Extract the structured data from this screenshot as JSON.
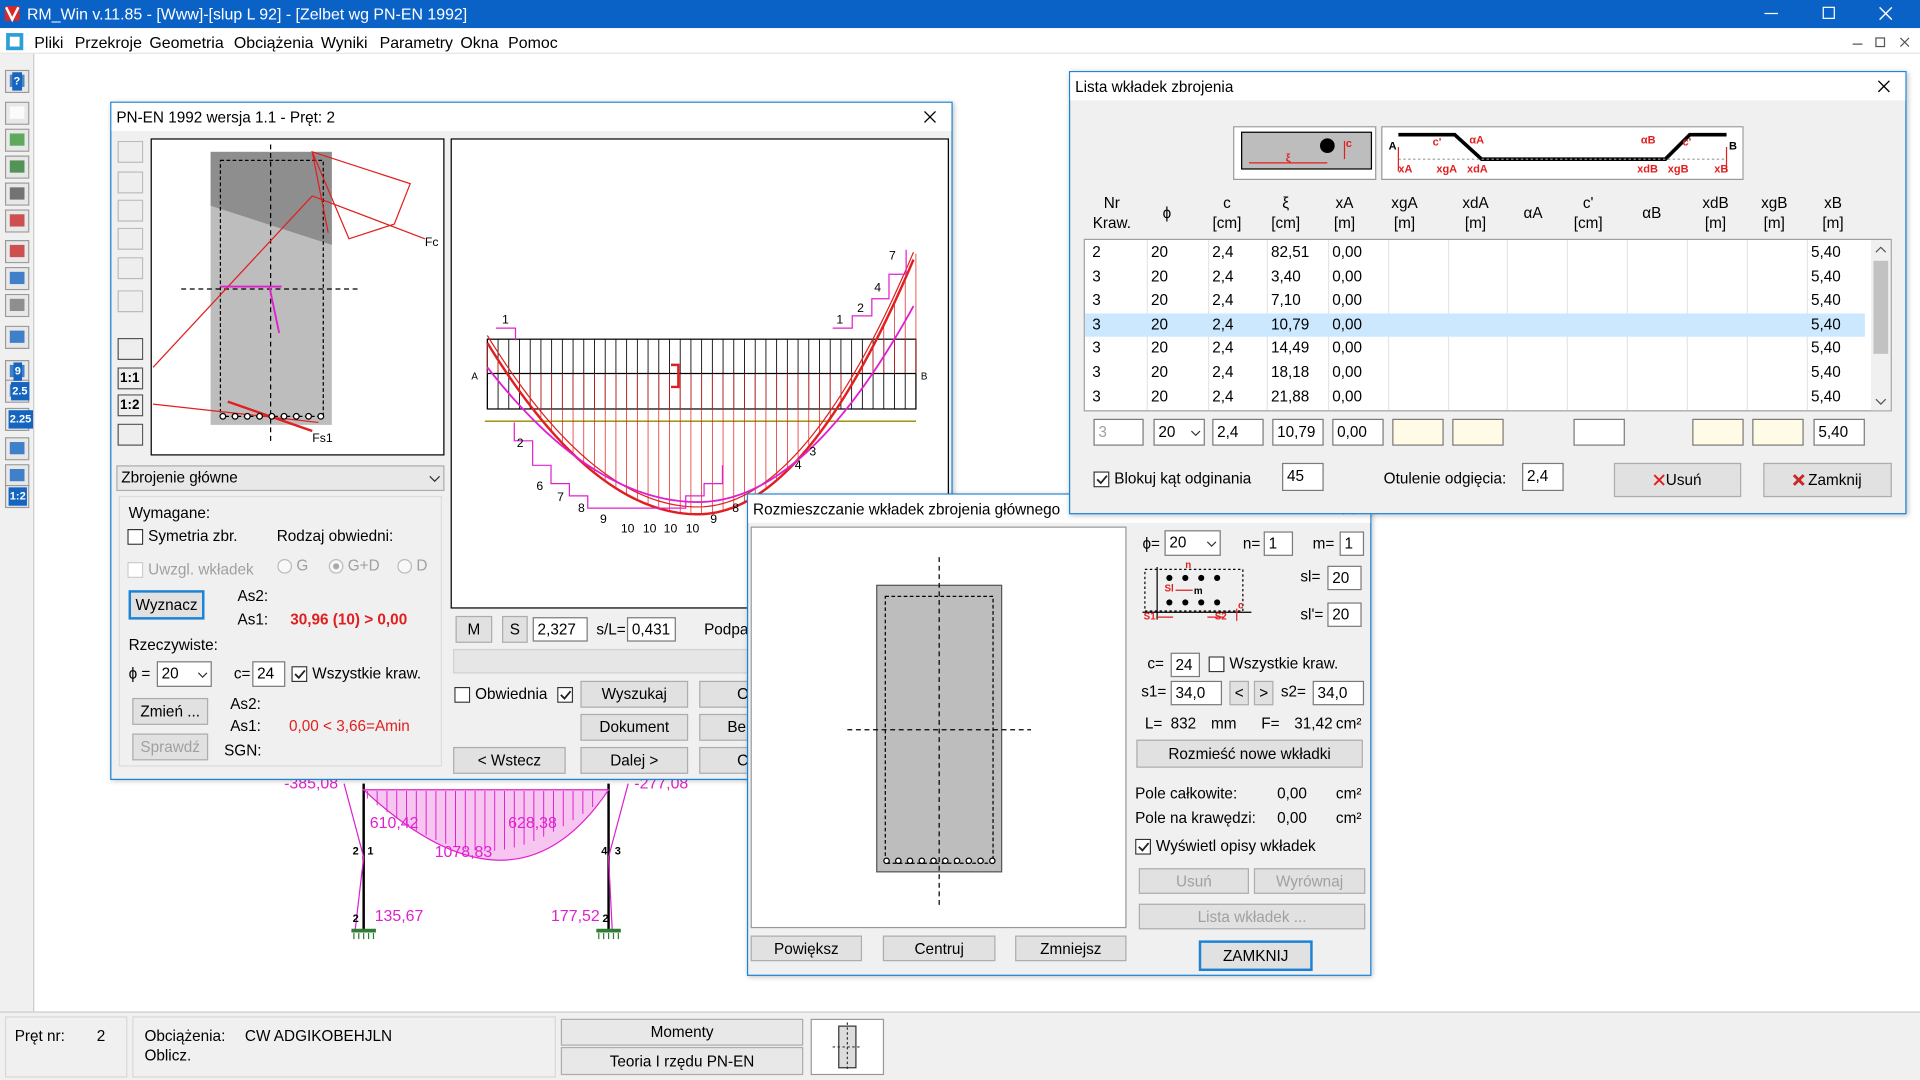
{
  "title_bar": {
    "title": "RM_Win v.11.85 - [Www]-[slup L 92] - [Zelbet wg PN-EN 1992]"
  },
  "menu": [
    "Pliki",
    "Przekroje",
    "Geometria",
    "Obciążenia",
    "Wyniki",
    "Parametry",
    "Okna",
    "Pomoc"
  ],
  "toolbar": {
    "labels": [
      "?",
      "9",
      "2.5",
      "2.25",
      "1:2"
    ]
  },
  "frame_diagram": {
    "values": [
      "-385,08",
      "610,42",
      "1078,83",
      "628,38",
      "-277,08",
      "135,67",
      "177,52"
    ],
    "node_labels": [
      "2",
      "1",
      "4",
      "3",
      "2",
      "2"
    ]
  },
  "design_window": {
    "title": "PN-EN 1992 wersja 1.1 - Pręt: 2",
    "icon_labels": [
      "1:1",
      "1:2"
    ],
    "section_labels": [
      "Fc",
      "Fs1"
    ],
    "mode_select": "Zbrojenie główne",
    "required": {
      "heading": "Wymagane:",
      "symmetry": "Symetria zbr.",
      "envelope_heading": "Rodzaj obwiedni:",
      "include_inserts": "Uwzgl. wkładek",
      "envelope_options": [
        "G",
        "G+D",
        "D"
      ],
      "compute_button": "Wyznacz",
      "as2_label": "As2:",
      "as1_label": "As1:",
      "as1_value": "30,96 (10) > 0,00"
    },
    "actual": {
      "heading": "Rzeczywiste:",
      "phi_label": "ϕ =",
      "phi_value": "20",
      "c_label": "c=",
      "c_value": "24",
      "all_edges": "Wszystkie kraw.",
      "change_button": "Zmień ...",
      "as2_label": "As2:",
      "as1_label": "As1:",
      "as1_value": "0,00 < 3,66=Amin",
      "check_button": "Sprawdź",
      "sgn_label": "SGN:"
    },
    "diagram_labels": {
      "ends": [
        "A",
        "B"
      ],
      "top": [
        "1",
        "1",
        "2",
        "4",
        "7"
      ],
      "bottom": [
        "2",
        "6",
        "7",
        "8",
        "9",
        "10",
        "10",
        "10",
        "10",
        "9",
        "8",
        "4",
        "3"
      ]
    },
    "controls": {
      "m_button": "M",
      "s_button": "S",
      "position": "2,327",
      "ratio_label": "s/L=",
      "ratio_value": "0,431",
      "truncated_label": "Podpa",
      "envelope": "Obwiednia",
      "search_button": "Wyszukaj",
      "document_button": "Dokument",
      "back_button": "< Wstecz",
      "next_button": "Dalej >",
      "cut_buttons": [
        "O",
        "Be",
        "C"
      ]
    }
  },
  "bar_list_window": {
    "title": "Lista wkładek zbrojenia",
    "sketch_labels": [
      "c",
      "ξ",
      "A",
      "B",
      "c'",
      "αA",
      "αB",
      "c'",
      "xA",
      "xgA",
      "xdA",
      "xdB",
      "xgB",
      "xB"
    ],
    "columns": [
      {
        "top": "Nr",
        "bottom": "Kraw."
      },
      {
        "top": "ϕ"
      },
      {
        "top": "c",
        "bottom": "[cm]"
      },
      {
        "top": "ξ",
        "bottom": "[cm]"
      },
      {
        "top": "xA",
        "bottom": "[m]"
      },
      {
        "top": "xgA",
        "bottom": "[m]"
      },
      {
        "top": "xdA",
        "bottom": "[m]"
      },
      {
        "top": "αA"
      },
      {
        "top": "c'",
        "bottom": "[cm]"
      },
      {
        "top": "αB"
      },
      {
        "top": "xdB",
        "bottom": "[m]"
      },
      {
        "top": "xgB",
        "bottom": "[m]"
      },
      {
        "top": "xB",
        "bottom": "[m]"
      }
    ],
    "rows": [
      {
        "nr": "2",
        "phi": "20",
        "c": "2,4",
        "xi": "82,51",
        "xA": "0,00",
        "xB": "5,40"
      },
      {
        "nr": "3",
        "phi": "20",
        "c": "2,4",
        "xi": "3,40",
        "xA": "0,00",
        "xB": "5,40"
      },
      {
        "nr": "3",
        "phi": "20",
        "c": "2,4",
        "xi": "7,10",
        "xA": "0,00",
        "xB": "5,40"
      },
      {
        "nr": "3",
        "phi": "20",
        "c": "2,4",
        "xi": "10,79",
        "xA": "0,00",
        "xB": "5,40"
      },
      {
        "nr": "3",
        "phi": "20",
        "c": "2,4",
        "xi": "14,49",
        "xA": "0,00",
        "xB": "5,40"
      },
      {
        "nr": "3",
        "phi": "20",
        "c": "2,4",
        "xi": "18,18",
        "xA": "0,00",
        "xB": "5,40"
      },
      {
        "nr": "3",
        "phi": "20",
        "c": "2,4",
        "xi": "21,88",
        "xA": "0,00",
        "xB": "5,40"
      }
    ],
    "selected_row": 3,
    "edit_row": {
      "nr": "3",
      "phi": "20",
      "c": "2,4",
      "xi": "10,79",
      "xA": "0,00",
      "xB": "5,40"
    },
    "lock_angle": "Blokuj kąt odginania",
    "angle_value": "45",
    "cover_label": "Otulenie odgięcia:",
    "cover_value": "2,4",
    "delete_button": "Usuń",
    "close_button": "Zamknij"
  },
  "placement_window": {
    "title": "Rozmieszczanie wkładek zbrojenia głównego",
    "phi_label": "ϕ=",
    "phi_value": "20",
    "n_label": "n=",
    "n_value": "1",
    "m_label": "m=",
    "m_value": "1",
    "sl_label": "sl=",
    "sl_value": "20",
    "sl2_label": "sl'=",
    "sl2_value": "20",
    "sketch_labels": [
      "n",
      "m",
      "Sl",
      "c",
      "S1",
      "S2"
    ],
    "c_label": "c=",
    "c_value": "24",
    "all_edges": "Wszystkie kraw.",
    "s1_label": "s1=",
    "s1_value": "34,0",
    "prev_button": "<",
    "next_button": ">",
    "s2_label": "s2=",
    "s2_value": "34,0",
    "length_label": "L=",
    "length_value": "832",
    "length_unit": "mm",
    "area_label": "F=",
    "area_value": "31,42",
    "area_unit": "cm²",
    "place_button": "Rozmieść nowe wkładki",
    "total_label": "Pole całkowite:",
    "total_value": "0,00",
    "total_unit": "cm²",
    "edge_label": "Pole na krawędzi:",
    "edge_value": "0,00",
    "edge_unit": "cm²",
    "show_labels": "Wyświetl opisy wkładek",
    "delete_button": "Usuń",
    "align_button": "Wyrównaj",
    "list_button": "Lista wkładek ...",
    "close_button": "ZAMKNIJ",
    "zoom_in": "Powiększ",
    "center": "Centruj",
    "zoom_out": "Zmniejsz"
  },
  "status_bar": {
    "member_label": "Pręt nr:",
    "member_value": "2",
    "loads_label": "Obciążenia:",
    "loads_value": "CW ADGIKOBEHJLN",
    "calc_label": "Oblicz.",
    "moments_button": "Momenty",
    "theory_button": "Teoria I rzędu PN-EN"
  }
}
